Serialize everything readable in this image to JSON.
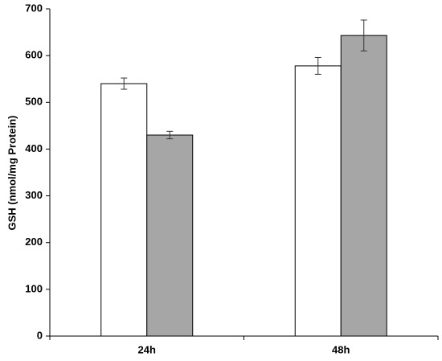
{
  "chart_data": {
    "type": "bar",
    "y_label": "GSH (nmol/mg Protein)",
    "categories": [
      "24h",
      "48h"
    ],
    "series": [
      {
        "color": "#ffffff",
        "values": [
          540,
          578
        ],
        "errors": [
          12,
          18
        ]
      },
      {
        "color": "#a6a6a6",
        "values": [
          430,
          643
        ],
        "errors": [
          8,
          33
        ]
      }
    ],
    "ylim": [
      0,
      700
    ],
    "yticks": [
      0,
      100,
      200,
      300,
      400,
      500,
      600,
      700
    ],
    "grid": false
  }
}
